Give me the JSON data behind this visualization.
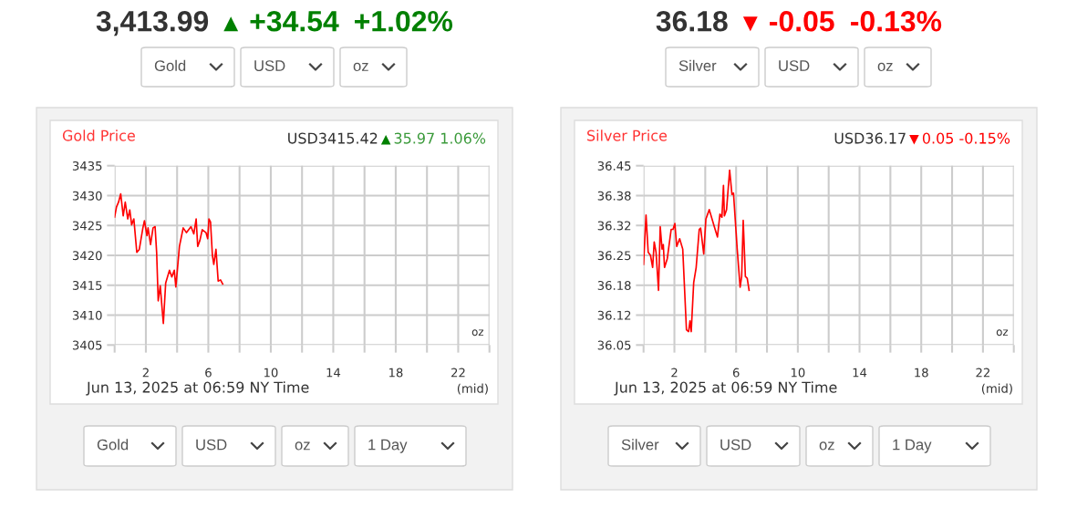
{
  "chart_data": [
    {
      "type": "line",
      "title": "Gold Price",
      "annotations": [
        "3,413.99",
        "▲",
        "+34.54",
        "+1.02%",
        "Gold",
        "USD",
        "oz",
        "USD3415.42",
        "▲",
        "35.97 1.06%",
        "oz",
        "Jun 13, 2025 at 06:59 NY Time",
        "(mid)",
        "Gold",
        "USD",
        "oz",
        "1 Day"
      ],
      "x": [
        0,
        0.12,
        0.25,
        0.39,
        0.55,
        0.68,
        0.84,
        0.97,
        1.09,
        1.23,
        1.42,
        1.58,
        1.81,
        1.91,
        2.07,
        2.14,
        2.3,
        2.46,
        2.59,
        2.69,
        2.79,
        2.92,
        3.12,
        3.27,
        3.51,
        3.66,
        3.82,
        3.92,
        4.15,
        4.39,
        4.6,
        4.89,
        5.07,
        5.22,
        5.32,
        5.46,
        5.61,
        5.85,
        5.96,
        6.04,
        6.14,
        6.26,
        6.35,
        6.49,
        6.63,
        6.78,
        6.92
      ],
      "series": [
        {
          "color": "#ff0000",
          "values": [
            3426.4,
            3428.1,
            3428.9,
            3430.3,
            3426.6,
            3428.9,
            3426.1,
            3427.6,
            3425.1,
            3426.1,
            3420.5,
            3421.0,
            3424.6,
            3425.8,
            3423.3,
            3424.6,
            3421.8,
            3424.6,
            3424.8,
            3420.5,
            3412.4,
            3414.9,
            3408.6,
            3415.4,
            3417.5,
            3416.4,
            3417.5,
            3414.7,
            3421.5,
            3424.6,
            3423.8,
            3424.8,
            3423.6,
            3426.1,
            3421.5,
            3422.5,
            3424.3,
            3423.8,
            3422.8,
            3426.1,
            3425.6,
            3420.0,
            3418.5,
            3421.0,
            3415.7,
            3415.9,
            3415.2
          ]
        }
      ],
      "xlim": [
        0,
        24
      ],
      "xticks": [
        {
          "value": 0,
          "label": null
        },
        2,
        {
          "value": 4,
          "label": null
        },
        6,
        {
          "value": 8,
          "label": null
        },
        10,
        {
          "value": 12,
          "label": null
        },
        14,
        {
          "value": 16,
          "label": null
        },
        18,
        {
          "value": 20,
          "label": null
        },
        22,
        {
          "value": 24,
          "label": null
        }
      ],
      "ylim": [
        3405,
        3435
      ],
      "yticks": [
        3405,
        3410,
        3415,
        3420,
        3425,
        3430,
        3435
      ],
      "grid": true
    },
    {
      "type": "line",
      "title": "Silver Price",
      "annotations": [
        "36.18",
        "▼",
        "-0.05",
        "-0.13%",
        "Silver",
        "USD",
        "oz",
        "USD36.17",
        "▼",
        "0.05 -0.15%",
        "oz",
        "Jun 13, 2025 at 06:59 NY Time",
        "(mid)",
        "Silver",
        "USD",
        "oz",
        "1 Day"
      ],
      "x": [
        0,
        0.16,
        0.3,
        0.45,
        0.59,
        0.69,
        0.81,
        0.97,
        1.08,
        1.2,
        1.28,
        1.36,
        1.54,
        1.79,
        1.91,
        2.03,
        2.15,
        2.34,
        2.54,
        2.78,
        2.92,
        3.01,
        3.09,
        3.25,
        3.41,
        3.61,
        3.7,
        3.9,
        4.04,
        4.26,
        4.55,
        4.79,
        4.95,
        5.08,
        5.18,
        5.24,
        5.38,
        5.58,
        5.73,
        5.83,
        6.07,
        6.26,
        6.36,
        6.46,
        6.6,
        6.72,
        6.84
      ],
      "series": [
        {
          "color": "#ff0000",
          "values": [
            36.23,
            36.34,
            36.257,
            36.25,
            36.223,
            36.28,
            36.257,
            36.172,
            36.314,
            36.264,
            36.274,
            36.223,
            36.243,
            36.308,
            36.308,
            36.321,
            36.27,
            36.287,
            36.264,
            36.084,
            36.08,
            36.104,
            36.08,
            36.189,
            36.223,
            36.308,
            36.311,
            36.253,
            36.331,
            36.352,
            36.318,
            36.291,
            36.342,
            36.335,
            36.406,
            36.338,
            36.352,
            36.44,
            36.386,
            36.389,
            36.264,
            36.179,
            36.203,
            36.328,
            36.203,
            36.199,
            36.172
          ]
        }
      ],
      "xlim": [
        0,
        24
      ],
      "xticks": [
        {
          "value": 0,
          "label": null
        },
        2,
        {
          "value": 4,
          "label": null
        },
        6,
        {
          "value": 8,
          "label": null
        },
        10,
        {
          "value": 12,
          "label": null
        },
        14,
        {
          "value": 16,
          "label": null
        },
        18,
        {
          "value": 20,
          "label": null
        },
        22,
        {
          "value": 24,
          "label": null
        }
      ],
      "ylim": [
        36.05,
        36.45
      ],
      "yticks": [
        36.05,
        {
          "value": 36.1167,
          "label": "36.12"
        },
        {
          "value": 36.1833,
          "label": "36.18"
        },
        36.25,
        {
          "value": 36.3167,
          "label": "36.32"
        },
        {
          "value": 36.3833,
          "label": "36.38"
        },
        36.45
      ],
      "grid": true
    }
  ]
}
